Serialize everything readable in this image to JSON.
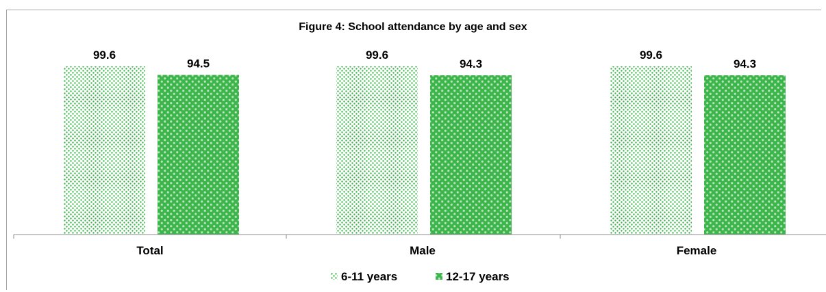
{
  "chart_data": {
    "type": "bar",
    "title": "Figure 4: School attendance by age and sex",
    "categories": [
      "Total",
      "Male",
      "Female"
    ],
    "series": [
      {
        "name": "6-11 years",
        "values": [
          99.6,
          99.6,
          99.6
        ],
        "color": "#3cb54a",
        "pattern": "small-dots"
      },
      {
        "name": "12-17 years",
        "values": [
          94.5,
          94.3,
          94.3
        ],
        "color": "#3cb54a",
        "pattern": "large-dots"
      }
    ],
    "ylim": [
      0,
      100
    ],
    "grid": false,
    "legend": "bottom",
    "xlabel": "",
    "ylabel": ""
  }
}
